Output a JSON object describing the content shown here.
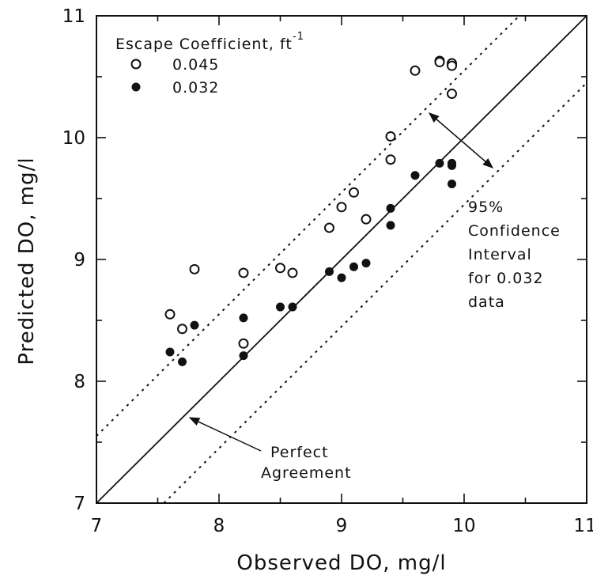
{
  "chart_data": {
    "type": "scatter",
    "xlabel": "Observed DO, mg/l",
    "ylabel": "Predicted DO, mg/l",
    "xlim": [
      7,
      11
    ],
    "ylim": [
      7,
      11
    ],
    "xticks": [
      "7",
      "8",
      "9",
      "10",
      "11"
    ],
    "yticks": [
      "7",
      "8",
      "9",
      "10",
      "11"
    ],
    "grid": false,
    "legend": {
      "title": "Escape Coefficient, ft",
      "title_superscript": "-1",
      "placement": "top-left"
    },
    "series": [
      {
        "name": "0.045",
        "marker": "open-circle",
        "points": [
          [
            7.6,
            8.55
          ],
          [
            7.7,
            8.43
          ],
          [
            7.8,
            8.92
          ],
          [
            8.2,
            8.89
          ],
          [
            8.2,
            8.31
          ],
          [
            8.5,
            8.93
          ],
          [
            8.6,
            8.89
          ],
          [
            8.9,
            9.26
          ],
          [
            9.0,
            9.43
          ],
          [
            9.1,
            9.55
          ],
          [
            9.2,
            9.33
          ],
          [
            9.4,
            10.01
          ],
          [
            9.4,
            9.82
          ],
          [
            9.6,
            10.55
          ],
          [
            9.8,
            10.63
          ],
          [
            9.8,
            10.62
          ],
          [
            9.9,
            10.61
          ],
          [
            9.9,
            10.59
          ],
          [
            9.9,
            10.36
          ]
        ]
      },
      {
        "name": "0.032",
        "marker": "filled-circle",
        "points": [
          [
            7.6,
            8.24
          ],
          [
            7.7,
            8.16
          ],
          [
            7.8,
            8.46
          ],
          [
            8.2,
            8.52
          ],
          [
            8.2,
            8.21
          ],
          [
            8.5,
            8.61
          ],
          [
            8.6,
            8.61
          ],
          [
            8.9,
            8.9
          ],
          [
            9.0,
            8.85
          ],
          [
            9.1,
            8.94
          ],
          [
            9.2,
            8.97
          ],
          [
            9.4,
            9.42
          ],
          [
            9.4,
            9.28
          ],
          [
            9.6,
            9.69
          ],
          [
            9.8,
            9.79
          ],
          [
            9.9,
            9.79
          ],
          [
            9.9,
            9.77
          ],
          [
            9.9,
            9.62
          ]
        ]
      }
    ],
    "lines": [
      {
        "name": "Perfect Agreement",
        "style": "solid",
        "offset": 0.0
      },
      {
        "name": "Upper 95% bound",
        "style": "dotted",
        "offset": 0.55
      },
      {
        "name": "Lower 95% bound",
        "style": "dotted",
        "offset": -0.55
      }
    ],
    "annotations": {
      "perfect_agreement": [
        "Perfect",
        "Agreement"
      ],
      "confidence": [
        "95%",
        "Confidence",
        "Interval",
        "for 0.032",
        "data"
      ]
    }
  }
}
